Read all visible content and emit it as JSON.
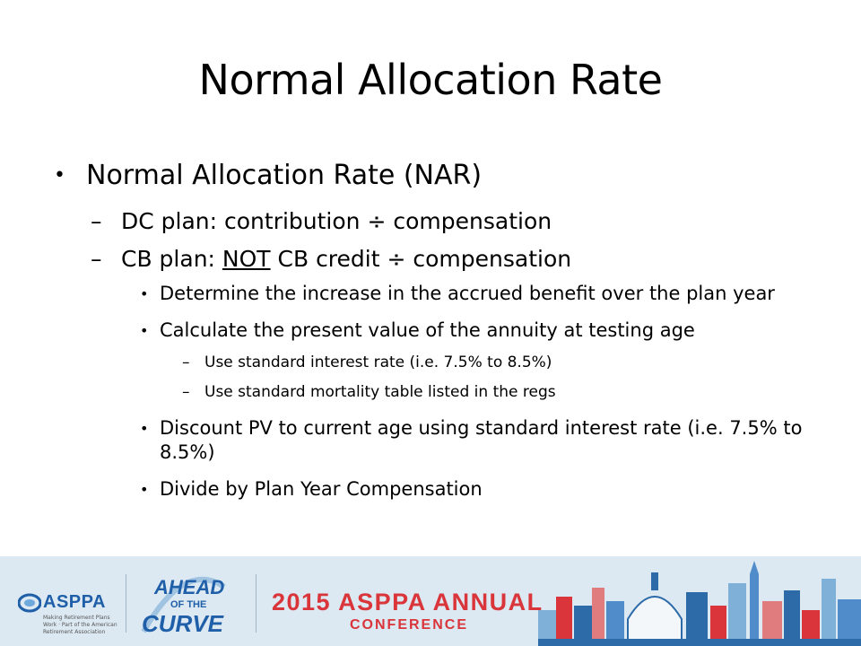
{
  "slide": {
    "title": "Normal Allocation Rate",
    "bullet1": "Normal Allocation Rate (NAR)",
    "dc_plan": "DC plan: contribution ÷ compensation",
    "cb_prefix": "CB plan: ",
    "cb_not": "NOT",
    "cb_suffix": " CB credit ÷ compensation",
    "sub_determine": "Determine the increase in the accrued benefit over the plan year",
    "sub_calculate": "Calculate the present value of the annuity at testing age",
    "sub_sub_interest": "Use standard interest rate (i.e. 7.5% to 8.5%)",
    "sub_sub_mortality": "Use standard mortality table listed in the regs",
    "sub_discount": "Discount PV to current age using standard interest rate (i.e. 7.5% to 8.5%)",
    "sub_divide": "Divide by Plan Year Compensation"
  },
  "footer": {
    "asppa": "ASPPA",
    "asppa_tag": "Making Retirement Plans Work · Part of the American Retirement Association",
    "ahead_line1": "AHEAD",
    "ahead_line2": "OF THE",
    "ahead_line3": "CURVE",
    "conference_title": "2015 ASPPA ANNUAL",
    "conference_sub": "CONFERENCE"
  },
  "colors": {
    "brand_blue": "#1f5ea8",
    "brand_red": "#d9353a",
    "footer_bg": "#dce9f2"
  }
}
